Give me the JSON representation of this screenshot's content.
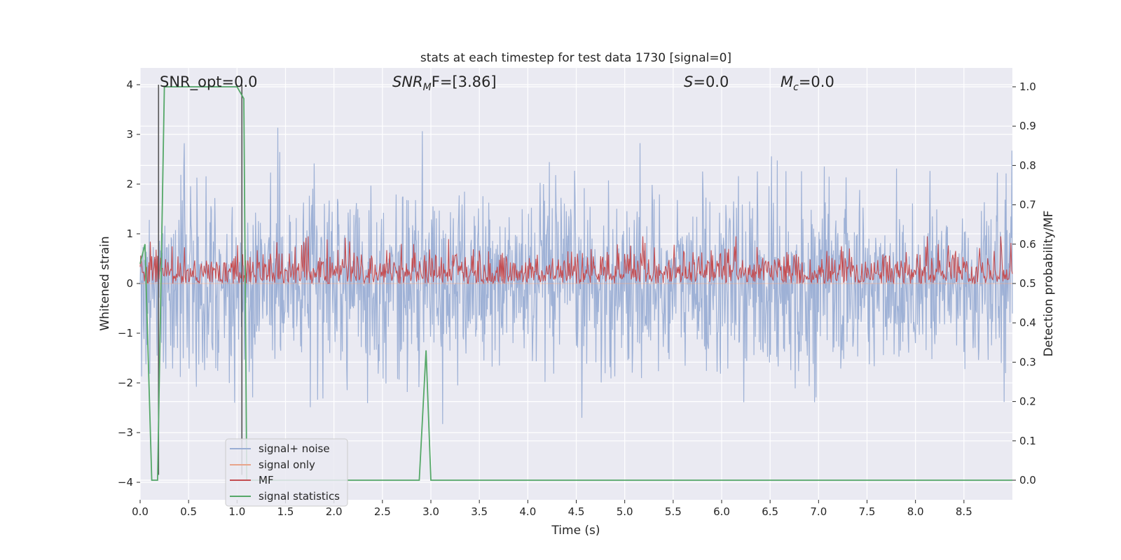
{
  "chart_data": {
    "type": "line",
    "title": "stats at each timestep for test data 1730 [signal=0]",
    "xlabel": "Time (s)",
    "ylabel_left": "Whitened strain",
    "ylabel_right": "Detection probability/MF",
    "xlim": [
      0.0,
      9.0
    ],
    "ylim_left": [
      -4.0,
      4.0
    ],
    "ylim_right": [
      0.0,
      1.0
    ],
    "x_ticks": [
      "0.0",
      "0.5",
      "1.0",
      "1.5",
      "2.0",
      "2.5",
      "3.0",
      "3.5",
      "4.0",
      "4.5",
      "5.0",
      "5.5",
      "6.0",
      "6.5",
      "7.0",
      "7.5",
      "8.0",
      "8.5"
    ],
    "y_ticks_left": [
      "4",
      "3",
      "2",
      "1",
      "0",
      "−1",
      "−2",
      "−3",
      "−4"
    ],
    "y_ticks_right": [
      "1.0",
      "0.9",
      "0.8",
      "0.7",
      "0.6",
      "0.5",
      "0.4",
      "0.3",
      "0.2",
      "0.1",
      "0.0"
    ],
    "grid": true,
    "legend_position": "lower-left",
    "annotations": {
      "snr_opt": "SNR_opt=0.0",
      "snr_mf_main": "SNR",
      "snr_mf_sub": "M",
      "snr_mf_rest": "F=[3.86]",
      "s_main": "S",
      "s_rest": "=0.0",
      "mc_main": "M",
      "mc_sub": "c",
      "mc_rest": "=0.0"
    },
    "vertical_markers_x": [
      0.19,
      1.05
    ],
    "series": [
      {
        "name": "signal+ noise",
        "color": "#9aaed4",
        "axis": "left",
        "note_values": "noise approx normal, std 0.9, range -4 to 4",
        "noise_std": 0.9
      },
      {
        "name": "signal only",
        "color": "#e8a48a",
        "axis": "left",
        "values_constant": 0.0
      },
      {
        "name": "MF",
        "color": "#c44e52",
        "axis": "right",
        "baseline": 0.5,
        "amplitude_range": [
          0.5,
          0.62
        ]
      },
      {
        "name": "signal statistics",
        "color": "#55a868",
        "axis": "right",
        "x": [
          0.0,
          0.05,
          0.12,
          0.18,
          0.25,
          0.3,
          0.8,
          1.0,
          1.07,
          1.1,
          1.2,
          2.8,
          2.88,
          2.95,
          3.0,
          3.1,
          9.0
        ],
        "values": [
          0.55,
          0.6,
          0.0,
          0.0,
          1.0,
          1.0,
          1.0,
          1.0,
          0.97,
          0.0,
          0.0,
          0.0,
          0.0,
          0.33,
          0.0,
          0.0,
          0.0
        ]
      }
    ],
    "colors": {
      "axes_background": "#eaeaf2",
      "grid": "#ffffff",
      "marker_line": "#555555"
    }
  }
}
